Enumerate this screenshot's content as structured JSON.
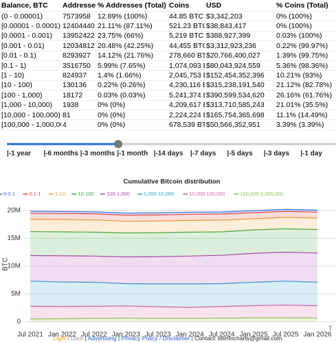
{
  "table": {
    "header": [
      "Balance, BTC",
      "Addresses",
      "% Addresses (Total)",
      "Coins",
      "USD",
      "% Coins (Total)"
    ],
    "rows": [
      [
        "(0 - 0.00001)",
        "7573958",
        "12.89% (100%)",
        "44.85 BTC",
        "$3,342,203",
        "0% (100%)"
      ],
      [
        "[0.00001 - 0.0001)",
        "12404440",
        "21.11% (87.11%)",
        "521.23 BTC",
        "$38,843,417",
        "0% (100%)"
      ],
      [
        "[0.0001 - 0.001)",
        "13952422",
        "23.75% (66%)",
        "5,219 BTC",
        "$388,927,399",
        "0.03% (100%)"
      ],
      [
        "[0.001 - 0.01)",
        "12034812",
        "20.48% (42.25%)",
        "44,455 BTC",
        "$3,312,923,236",
        "0.22% (99.97%)"
      ],
      [
        "[0.01 - 0.1)",
        "8293927",
        "14.12% (21.76%)",
        "278,660 BTC",
        "$20,766,400,027",
        "1.39% (99.75%)"
      ],
      [
        "[0.1 - 1)",
        "3516750",
        "5.99% (7.65%)",
        "1,074,093 BTC",
        "$80,043,924,559",
        "5.36% (98.36%)"
      ],
      [
        "[1 - 10)",
        "824937",
        "1.4% (1.66%)",
        "2,045,753 BTC",
        "$152,454,352,396",
        "10.21% (93%)"
      ],
      [
        "[10 - 100)",
        "130136",
        "0.22% (0.26%)",
        "4,230,116 BTC",
        "$315,238,191,540",
        "21.12% (82.78%)"
      ],
      [
        "[100 - 1,000)",
        "18172",
        "0.03% (0.03%)",
        "5,241,374 BTC",
        "$390,599,534,620",
        "26.16% (61.76%)"
      ],
      [
        "[1,000 - 10,000)",
        "1938",
        "0% (0%)",
        "4,209,617 BTC",
        "$313,710,585,243",
        "21.01% (35.5%)"
      ],
      [
        "[10,000 - 100,000)",
        "81",
        "0% (0%)",
        "2,224,224 BTC",
        "$165,754,365,698",
        "11.1% (14.49%)"
      ],
      [
        "[100,000 - 1,000,000)",
        "4",
        "0% (0%)",
        "678,539 BTC",
        "$50,566,352,951",
        "3.39% (3.39%)"
      ]
    ]
  },
  "slider": {
    "labels": [
      "|-1 year",
      "|-6 months",
      "|-3 months",
      "|-1 month",
      "|-14 days",
      "|-7 days",
      "|-5 days",
      "|-3 days",
      "|-1 day"
    ]
  },
  "chart_data": {
    "type": "stacked-area",
    "title": "Cumulative Bitcoin distribution",
    "y_label": "BTC",
    "x": [
      "Jul 2021",
      "Jan 2022",
      "Jul 2022",
      "Jan 2023",
      "Jul 2023",
      "Jan 2024",
      "Jul 2024",
      "Jan 2025",
      "Jul 2025",
      "Jan 2026"
    ],
    "ylim": [
      -1100000,
      21200000
    ],
    "yticks": [
      0,
      {
        "value": 5000000,
        "label": "5M"
      },
      {
        "value": 10000000,
        "label": "10M"
      },
      {
        "value": 15000000,
        "label": "15M"
      },
      {
        "value": 20000000,
        "label": "20M"
      }
    ],
    "grid": true,
    "series": [
      {
        "name": "0-0.1",
        "color": "#3d6fd9",
        "values": [
          350000,
          350000,
          350000,
          370000,
          380000,
          380000,
          370000,
          360000,
          360000,
          360000
        ]
      },
      {
        "name": "0.1-1",
        "color": "#e8413c",
        "values": [
          1100000,
          1100000,
          1100000,
          1100000,
          1100000,
          1100000,
          1100000,
          1100000,
          1070000,
          1070000
        ]
      },
      {
        "name": "1-10",
        "color": "#f0a030",
        "values": [
          2200000,
          2200000,
          2200000,
          2100000,
          2100000,
          2100000,
          2100000,
          2000000,
          2050000,
          2050000
        ]
      },
      {
        "name": "10-100",
        "color": "#3fa63f",
        "values": [
          4300000,
          4300000,
          4300000,
          4300000,
          4300000,
          4300000,
          4200000,
          4200000,
          4200000,
          4230000
        ]
      },
      {
        "name": "100-1,000",
        "color": "#b040b0",
        "values": [
          4600000,
          4700000,
          4700000,
          4800000,
          4900000,
          5000000,
          5100000,
          5200000,
          5200000,
          5240000
        ]
      },
      {
        "name": "1,000-10,000",
        "color": "#2a9ad0",
        "values": [
          4500000,
          4400000,
          4300000,
          4000000,
          4100000,
          4200000,
          4100000,
          4200000,
          4300000,
          4210000
        ]
      },
      {
        "name": "10,000-100,000",
        "color": "#e05aa0",
        "values": [
          2300000,
          2200000,
          2200000,
          2200000,
          2100000,
          2000000,
          2100000,
          2200000,
          2300000,
          2220000
        ]
      },
      {
        "name": "100,000-1,000,000",
        "color": "#8bc34a",
        "values": [
          500000,
          550000,
          600000,
          650000,
          600000,
          600000,
          650000,
          700000,
          700000,
          680000
        ]
      }
    ]
  },
  "footer": [
    {
      "text": "Light",
      "color": "#f0a000"
    },
    {
      "text": " / ",
      "color": "#888888"
    },
    {
      "text": "Dark",
      "color": "#999999"
    },
    {
      "text": " | ",
      "color": "#333333"
    },
    {
      "text": "Advertising",
      "color": "#1a55c0"
    },
    {
      "text": " | ",
      "color": "#333333"
    },
    {
      "text": "Privacy Policy / Disclaimer",
      "color": "#1a55c0"
    },
    {
      "text": " | ",
      "color": "#333333"
    },
    {
      "text": "Contact: bitinfocharts@gmail.com",
      "color": "#222222"
    }
  ]
}
